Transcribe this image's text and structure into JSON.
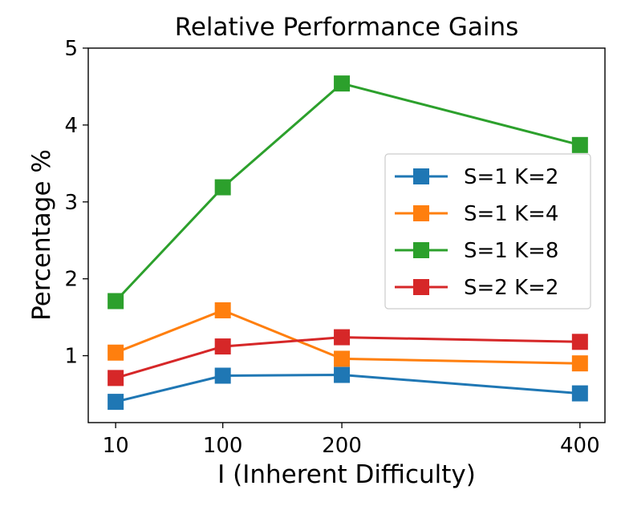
{
  "chart_data": {
    "type": "line",
    "title": "Relative Performance Gains",
    "xlabel": "I (Inherent Difficulty)",
    "ylabel": "Percentage %",
    "x": [
      10,
      100,
      200,
      400
    ],
    "x_tick_labels": [
      "10",
      "100",
      "200",
      "400"
    ],
    "y_ticks": [
      1,
      2,
      3,
      4,
      5
    ],
    "y_tick_labels": [
      "1",
      "2",
      "3",
      "4",
      "5"
    ],
    "xlim": [
      -13,
      421
    ],
    "ylim": [
      0.13,
      5.0
    ],
    "grid": false,
    "legend_position": "center-right",
    "series": [
      {
        "name": "S=1 K=2",
        "color": "#1f77b4",
        "values": [
          0.4,
          0.74,
          0.75,
          0.51
        ]
      },
      {
        "name": "S=1 K=4",
        "color": "#ff7f0e",
        "values": [
          1.04,
          1.59,
          0.96,
          0.9
        ]
      },
      {
        "name": "S=1 K=8",
        "color": "#2ca02c",
        "values": [
          1.71,
          3.19,
          4.54,
          3.74
        ]
      },
      {
        "name": "S=2 K=2",
        "color": "#d62728",
        "values": [
          0.71,
          1.12,
          1.24,
          1.18
        ]
      }
    ]
  }
}
